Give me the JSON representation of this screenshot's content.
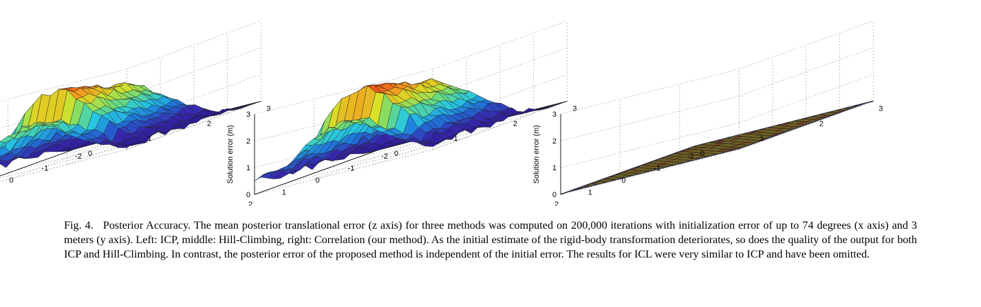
{
  "caption": {
    "label": "Fig. 4.",
    "text": "Posterior Accuracy. The mean posterior translational error (z axis) for three methods was computed on 200,000 iterations with initialization error of up to 74 degrees (x axis) and 3 meters (y axis). Left: ICP, middle: Hill-Climbing, right: Correlation (our method). As the initial estimate of the rigid-body transformation deteriorates, so does the quality of the output for both ICP and Hill-Climbing. In contrast, the posterior error of the proposed method is independent of the initial error. The results for ICL were very similar to ICP and have been omitted."
  },
  "chart_data": [
    {
      "type": "surface",
      "method": "ICP",
      "zlabel": "Solution error (m)",
      "x_ticks": [
        "-2",
        "-1",
        "0",
        "1",
        "2"
      ],
      "y_ticks": [
        "0",
        "1",
        "2",
        "3"
      ],
      "z_ticks": [
        "0",
        "1",
        "2",
        "3"
      ],
      "xlim": [
        -2,
        2
      ],
      "ylim": [
        0,
        3
      ],
      "zlim": [
        0,
        3
      ],
      "grid": true,
      "colormap": "jet",
      "surface_model": {
        "peak_z": 3.0,
        "ridge_y": 1.35,
        "drop_x": -1.3,
        "plateau_x": 1.4,
        "plateau_z": 0.9
      }
    },
    {
      "type": "surface",
      "method": "Hill-Climbing",
      "zlabel": "Solution error (m)",
      "x_ticks": [
        "-2",
        "-1",
        "0",
        "1",
        "2"
      ],
      "y_ticks": [
        "0",
        "1",
        "2",
        "3"
      ],
      "z_ticks": [
        "0",
        "1",
        "2",
        "3"
      ],
      "xlim": [
        -2,
        2
      ],
      "ylim": [
        0,
        3
      ],
      "zlim": [
        0,
        3
      ],
      "grid": true,
      "colormap": "jet",
      "surface_model": {
        "peak_z": 3.1,
        "ridge_y": 1.45,
        "drop_x": -1.2,
        "plateau_x": 1.45,
        "plateau_z": 0.7
      }
    },
    {
      "type": "surface",
      "method": "Correlation (our method)",
      "zlabel": "Solution error (m)",
      "x_ticks": [
        "-2",
        "-1",
        "0",
        "1",
        "2"
      ],
      "y_ticks": [
        "0",
        "1",
        "2",
        "3"
      ],
      "z_ticks": [
        "0",
        "1",
        "2",
        "3"
      ],
      "xlim": [
        -2,
        2
      ],
      "ylim": [
        0,
        3
      ],
      "zlim": [
        0,
        3
      ],
      "grid": true,
      "colormap": "jet",
      "surface_model": {
        "flat_z": 0.02
      }
    }
  ]
}
